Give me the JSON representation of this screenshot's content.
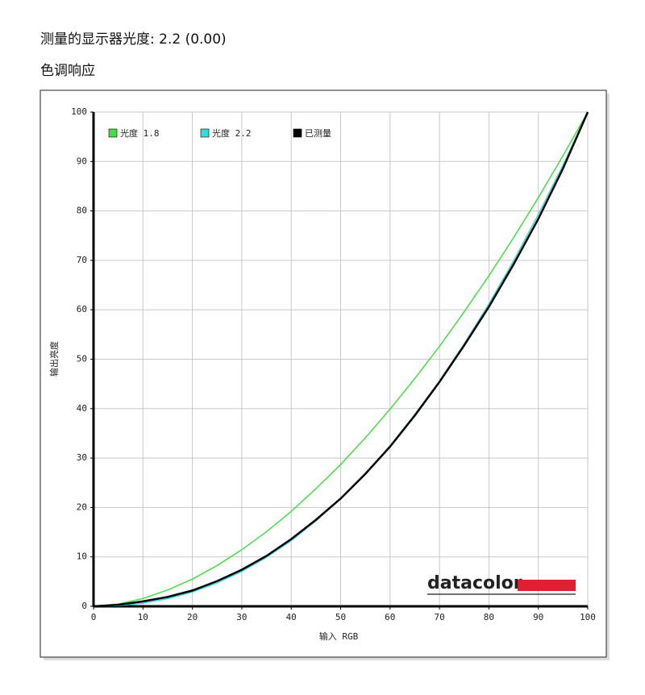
{
  "header": {
    "title": "测量的显示器光度: 2.2 (0.00)",
    "subtitle": "色调响应"
  },
  "chart_data": {
    "type": "line",
    "x": [
      0,
      5,
      10,
      15,
      20,
      25,
      30,
      35,
      40,
      45,
      50,
      55,
      60,
      65,
      70,
      75,
      80,
      85,
      90,
      95,
      100
    ],
    "series": [
      {
        "name": "光度 1.8",
        "color": "#44dd44",
        "values": [
          0,
          0.46,
          1.58,
          3.29,
          5.52,
          8.25,
          11.45,
          15.1,
          19.2,
          23.8,
          28.7,
          34.1,
          39.9,
          46.1,
          52.6,
          59.6,
          66.9,
          74.6,
          82.7,
          91.2,
          100
        ]
      },
      {
        "name": "光度 2.2",
        "color": "#33dddd",
        "values": [
          0,
          0.14,
          0.63,
          1.54,
          2.9,
          4.74,
          7.07,
          9.93,
          13.3,
          17.3,
          21.8,
          26.8,
          32.5,
          38.8,
          45.6,
          53.1,
          61.2,
          69.9,
          79.3,
          89.3,
          100
        ]
      },
      {
        "name": "已测量",
        "color": "#000000",
        "values": [
          0,
          0.3,
          1.0,
          1.9,
          3.2,
          5.1,
          7.4,
          10.2,
          13.6,
          17.5,
          21.8,
          26.8,
          32.3,
          38.6,
          45.4,
          52.8,
          60.6,
          69.2,
          78.4,
          88.6,
          100
        ]
      }
    ],
    "x_label": "输入 RGB",
    "y_label": "输出亮度",
    "xlim": [
      0,
      100
    ],
    "ylim": [
      0,
      100
    ],
    "xticks": [
      0,
      10,
      20,
      30,
      40,
      50,
      60,
      70,
      80,
      90,
      100
    ],
    "yticks": [
      0,
      10,
      20,
      30,
      40,
      50,
      60,
      70,
      80,
      90,
      100
    ],
    "grid": true,
    "legend": "upper left",
    "logo": "datacolor"
  }
}
